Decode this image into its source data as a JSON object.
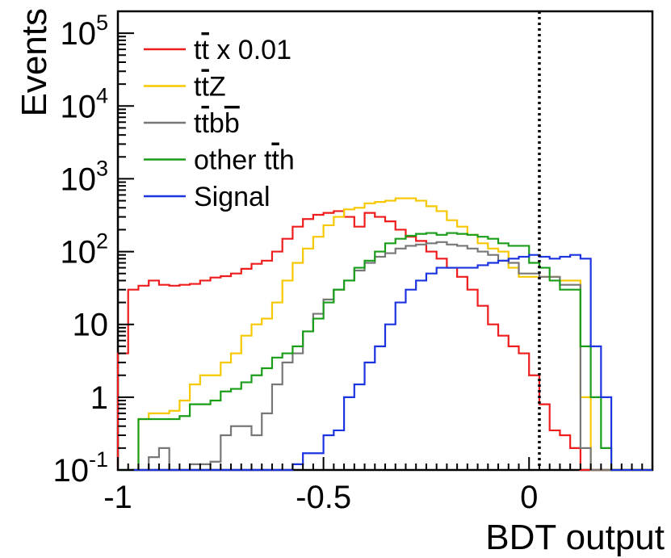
{
  "chart_data": {
    "type": "histogram",
    "xlabel": "BDT output",
    "ylabel": "Events",
    "xlim": [
      -1.0,
      0.3
    ],
    "ylim": [
      0.1,
      200000
    ],
    "yscale": "log",
    "grid": false,
    "legend_position": "top-left",
    "x_ticks": [
      {
        "value": -1.0,
        "label": "-1"
      },
      {
        "value": -0.5,
        "label": "-0.5"
      },
      {
        "value": 0.0,
        "label": "0"
      }
    ],
    "y_ticks": [
      {
        "value": 0.1,
        "base": "10",
        "exp": "-1"
      },
      {
        "value": 1,
        "base": "1",
        "exp": ""
      },
      {
        "value": 10,
        "base": "10",
        "exp": ""
      },
      {
        "value": 100,
        "base": "10",
        "exp": "2"
      },
      {
        "value": 1000,
        "base": "10",
        "exp": "3"
      },
      {
        "value": 10000,
        "base": "10",
        "exp": "4"
      },
      {
        "value": 100000,
        "base": "10",
        "exp": "5"
      }
    ],
    "vertical_line": {
      "x": 0.025,
      "style": "dotted"
    },
    "bin_edges": [
      -1.0,
      -0.975,
      -0.95,
      -0.925,
      -0.9,
      -0.875,
      -0.85,
      -0.825,
      -0.8,
      -0.775,
      -0.75,
      -0.725,
      -0.7,
      -0.675,
      -0.65,
      -0.625,
      -0.6,
      -0.575,
      -0.55,
      -0.525,
      -0.5,
      -0.475,
      -0.45,
      -0.425,
      -0.4,
      -0.375,
      -0.35,
      -0.325,
      -0.3,
      -0.275,
      -0.25,
      -0.225,
      -0.2,
      -0.175,
      -0.15,
      -0.125,
      -0.1,
      -0.075,
      -0.05,
      -0.025,
      0.0,
      0.025,
      0.05,
      0.075,
      0.1,
      0.125,
      0.15,
      0.175,
      0.2,
      0.225,
      0.25,
      0.275,
      0.3
    ],
    "series": [
      {
        "name_parts": [
          {
            "t": "t",
            "o": false
          },
          {
            "t": "t",
            "o": true
          },
          {
            "t": " x 0.01",
            "o": false
          }
        ],
        "color": "#ee1c1c",
        "values": [
          4,
          30,
          34,
          40,
          35,
          34,
          35,
          36,
          40,
          44,
          46,
          50,
          58,
          68,
          75,
          100,
          150,
          220,
          280,
          320,
          340,
          360,
          300,
          220,
          340,
          300,
          260,
          200,
          160,
          140,
          100,
          80,
          60,
          45,
          30,
          18,
          10,
          7,
          5,
          4,
          2,
          0.8,
          0.35,
          0.3,
          0.2,
          0.1,
          0.1,
          0.1,
          0.1,
          0.1,
          0.1,
          0.1
        ]
      },
      {
        "name_parts": [
          {
            "t": "t",
            "o": false
          },
          {
            "t": "t",
            "o": true
          },
          {
            "t": "Z",
            "o": false
          }
        ],
        "color": "#f7c800",
        "values": [
          0.1,
          0.1,
          0.5,
          0.6,
          0.6,
          0.65,
          0.9,
          1.5,
          2,
          2,
          3,
          4,
          7,
          10,
          12,
          20,
          40,
          70,
          110,
          160,
          230,
          300,
          380,
          400,
          460,
          480,
          500,
          540,
          540,
          500,
          420,
          360,
          270,
          220,
          170,
          130,
          110,
          100,
          60,
          45,
          45,
          45,
          45,
          40,
          40,
          1,
          0.1,
          0.1,
          0.1,
          0.1,
          0.1,
          0.1
        ]
      },
      {
        "name_parts": [
          {
            "t": "t",
            "o": false
          },
          {
            "t": "t",
            "o": true
          },
          {
            "t": "b",
            "o": false
          },
          {
            "t": "b",
            "o": true
          }
        ],
        "color": "#777777",
        "values": [
          0.1,
          0.1,
          0.1,
          0.15,
          0.2,
          0.1,
          0.1,
          0.12,
          0.12,
          0.13,
          0.3,
          0.4,
          0.4,
          0.3,
          0.6,
          1.5,
          3,
          4,
          8,
          14,
          22,
          30,
          40,
          55,
          70,
          85,
          95,
          110,
          120,
          125,
          130,
          135,
          125,
          120,
          110,
          100,
          90,
          75,
          70,
          50,
          50,
          45,
          45,
          35,
          35,
          0.2,
          0.1,
          0.1,
          0.1,
          0.1,
          0.1,
          0.1
        ]
      },
      {
        "name_parts": [
          {
            "t": "other t",
            "o": false
          },
          {
            "t": "t",
            "o": true
          },
          {
            "t": "h",
            "o": false
          }
        ],
        "color": "#1a9e1a",
        "values": [
          0.1,
          0.1,
          0.5,
          0.5,
          0.5,
          0.5,
          0.55,
          0.8,
          0.8,
          0.9,
          1.2,
          1.3,
          1.6,
          2,
          2.5,
          3.5,
          4,
          5,
          8,
          12,
          20,
          30,
          40,
          60,
          75,
          100,
          130,
          150,
          165,
          175,
          180,
          170,
          180,
          175,
          170,
          160,
          150,
          130,
          120,
          120,
          70,
          60,
          40,
          30,
          30,
          5,
          1,
          0.2,
          0.1,
          0.1,
          0.1,
          0.1
        ]
      },
      {
        "name_parts": [
          {
            "t": "Signal",
            "o": false
          }
        ],
        "color": "#1c34e0",
        "values": [
          0.1,
          0.1,
          0.1,
          0.1,
          0.1,
          0.1,
          0.1,
          0.1,
          0.1,
          0.1,
          0.1,
          0.1,
          0.1,
          0.1,
          0.1,
          0.1,
          0.1,
          0.12,
          0.17,
          0.17,
          0.3,
          0.35,
          1.0,
          1.5,
          3,
          5,
          10,
          20,
          30,
          40,
          50,
          60,
          60,
          60,
          60,
          65,
          70,
          75,
          80,
          85,
          90,
          85,
          80,
          85,
          90,
          80,
          5,
          1,
          0.1,
          0.1,
          0.1,
          0.1
        ]
      }
    ]
  }
}
